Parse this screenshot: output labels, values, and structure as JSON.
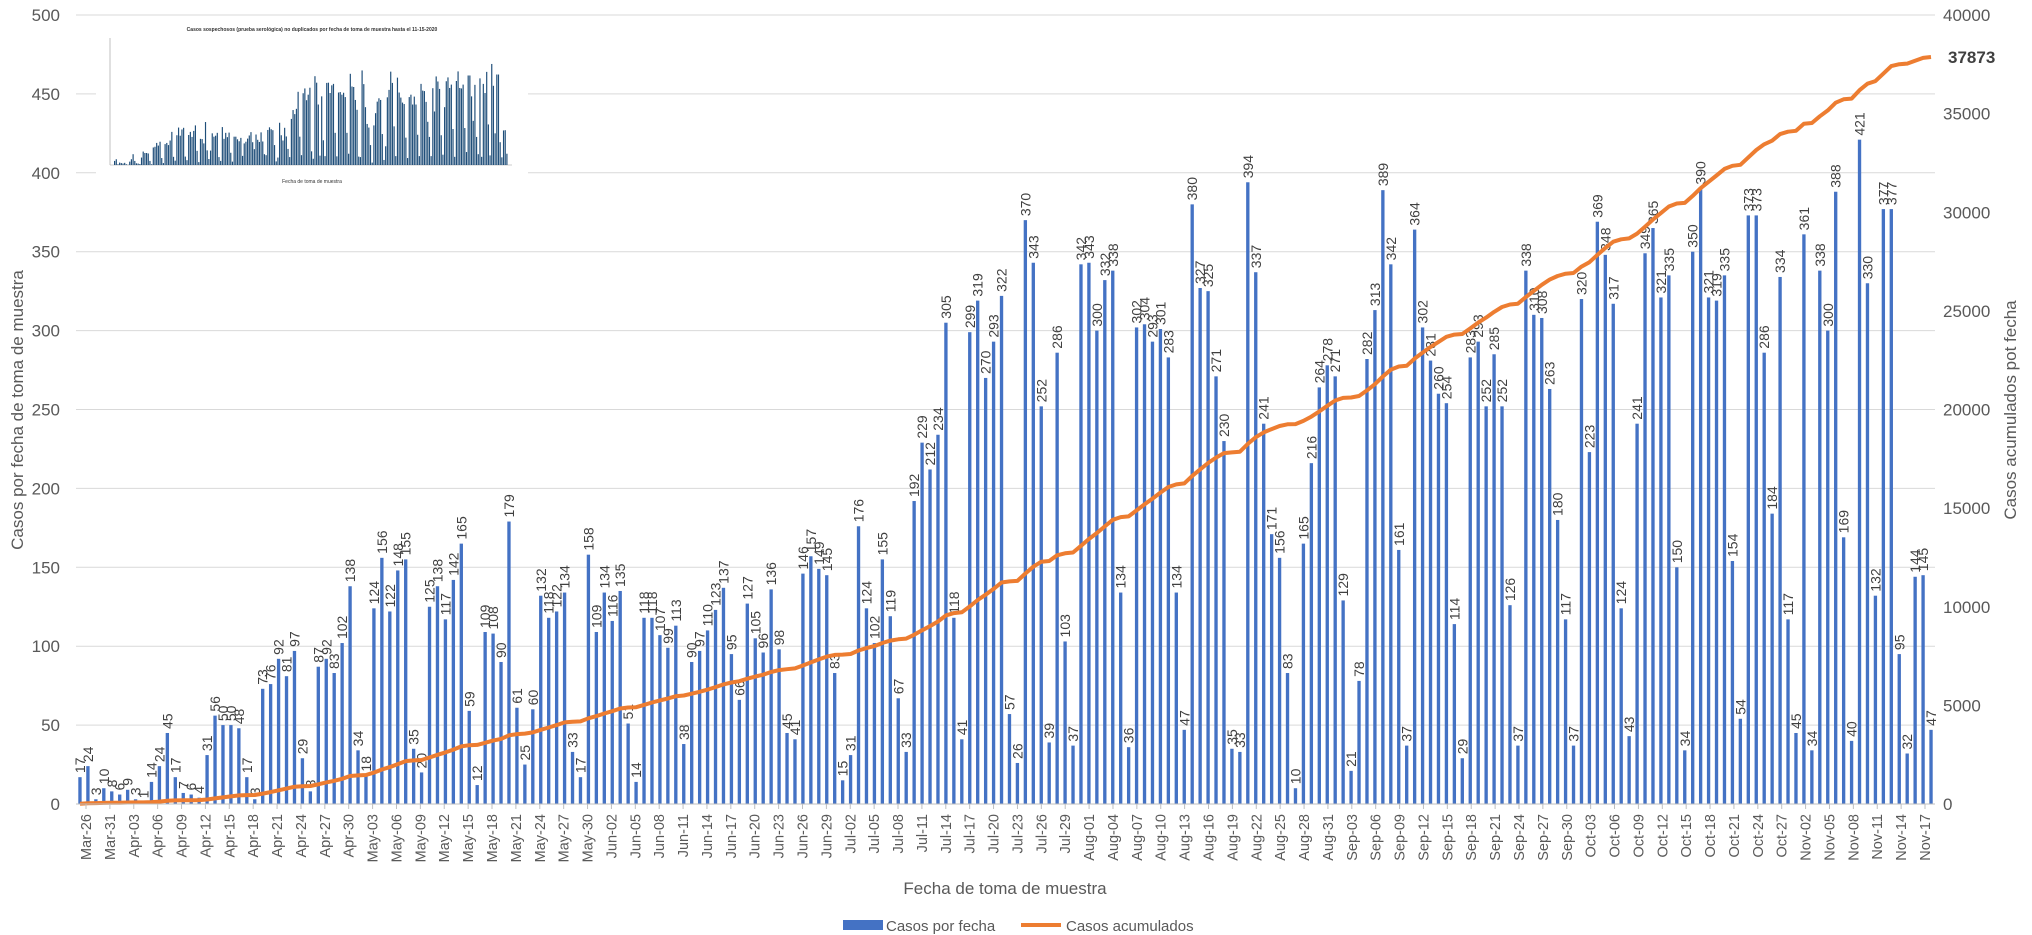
{
  "chart_data": {
    "type": "bar",
    "xlabel": "Fecha de toma de muestra",
    "ylabel": "Casos por fecha de toma de muestra",
    "y2label": "Casos acumulados pot fecha",
    "ylim": [
      0,
      500
    ],
    "y2lim": [
      0,
      40000
    ],
    "yticks": [
      "0",
      "50",
      "100",
      "150",
      "200",
      "250",
      "300",
      "350",
      "400",
      "450",
      "500"
    ],
    "y2ticks": [
      "0",
      "5000",
      "10000",
      "15000",
      "20000",
      "25000",
      "30000",
      "35000",
      "40000"
    ],
    "xtick_labels": [
      "Mar-26",
      "Mar-31",
      "Apr-03",
      "Apr-06",
      "Apr-09",
      "Apr-12",
      "Apr-15",
      "Apr-18",
      "Apr-21",
      "Apr-24",
      "Apr-27",
      "Apr-30",
      "May-03",
      "May-06",
      "May-09",
      "May-12",
      "May-15",
      "May-18",
      "May-21",
      "May-24",
      "May-27",
      "May-30",
      "Jun-02",
      "Jun-05",
      "Jun-08",
      "Jun-11",
      "Jun-14",
      "Jun-17",
      "Jun-20",
      "Jun-23",
      "Jun-26",
      "Jun-29",
      "Jul-02",
      "Jul-05",
      "Jul-08",
      "Jul-11",
      "Jul-14",
      "Jul-17",
      "Jul-20",
      "Jul-23",
      "Jul-26",
      "Jul-29",
      "Aug-01",
      "Aug-04",
      "Aug-07",
      "Aug-10",
      "Aug-13",
      "Aug-16",
      "Aug-19",
      "Aug-22",
      "Aug-25",
      "Aug-28",
      "Aug-31",
      "Sep-03",
      "Sep-06",
      "Sep-09",
      "Sep-12",
      "Sep-15",
      "Sep-18",
      "Sep-21",
      "Sep-24",
      "Sep-27",
      "Sep-30",
      "Oct-03",
      "Oct-06",
      "Oct-09",
      "Oct-12",
      "Oct-15",
      "Oct-18",
      "Oct-21",
      "Oct-24",
      "Oct-27",
      "Nov-02",
      "Nov-05",
      "Nov-08",
      "Nov-11",
      "Nov-14",
      "Nov-17"
    ],
    "series": [
      {
        "name": "Casos por fecha",
        "type": "bar",
        "color": "#4472C4",
        "values": [
          17,
          24,
          3,
          10,
          8,
          6,
          9,
          3,
          1,
          14,
          24,
          45,
          17,
          7,
          6,
          4,
          31,
          56,
          50,
          50,
          48,
          17,
          3,
          73,
          76,
          92,
          81,
          97,
          29,
          8,
          87,
          92,
          83,
          102,
          138,
          34,
          18,
          124,
          156,
          122,
          148,
          155,
          35,
          20,
          125,
          138,
          117,
          142,
          165,
          59,
          12,
          109,
          108,
          90,
          179,
          61,
          25,
          60,
          132,
          118,
          122,
          134,
          33,
          17,
          158,
          109,
          134,
          116,
          135,
          51,
          14,
          118,
          118,
          107,
          99,
          113,
          38,
          90,
          97,
          110,
          123,
          137,
          95,
          66,
          127,
          105,
          96,
          136,
          98,
          45,
          41,
          146,
          157,
          149,
          145,
          83,
          15,
          31,
          176,
          124,
          102,
          155,
          119,
          67,
          33,
          192,
          229,
          212,
          234,
          305,
          118,
          41,
          299,
          319,
          270,
          293,
          322,
          57,
          26,
          370,
          343,
          252,
          39,
          286,
          103,
          37,
          342,
          343,
          300,
          332,
          338,
          134,
          36,
          302,
          304,
          293,
          301,
          283,
          134,
          47,
          380,
          327,
          325,
          271,
          230,
          35,
          33,
          394,
          337,
          241,
          171,
          156,
          83,
          10,
          165,
          216,
          264,
          278,
          271,
          129,
          21,
          78,
          282,
          313,
          389,
          342,
          161,
          37,
          364,
          302,
          281,
          260,
          254,
          114,
          29,
          283,
          293,
          252,
          285,
          252,
          126,
          37,
          338,
          310,
          308,
          263,
          180,
          117,
          37,
          320,
          223,
          369,
          348,
          317,
          124,
          43,
          241,
          349,
          365,
          321,
          335,
          150,
          34,
          350,
          390,
          321,
          319,
          335,
          154,
          54,
          373,
          373,
          286,
          184,
          334,
          117,
          45,
          361,
          34,
          338,
          300,
          388,
          169,
          40,
          421,
          330,
          132,
          377,
          377,
          95,
          32,
          144,
          145,
          47
        ]
      },
      {
        "name": "Casos acumulados",
        "type": "line",
        "color": "#ED7D31",
        "final_label": "37873"
      }
    ],
    "legend_position": "bottom",
    "grid": "horizontal",
    "inset_title": "Casos sospechosos (prueba serológica) no duplicados por fecha de toma de muestra hasta el 11-15-2020",
    "inset_xlabel": "Fecha de toma de muestra"
  }
}
